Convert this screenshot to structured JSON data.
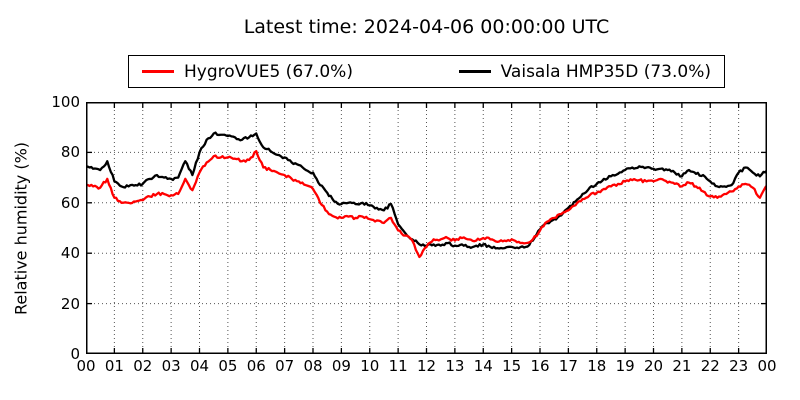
{
  "title": "Latest time: 2024-04-06 00:00:00 UTC",
  "legend": {
    "entries": [
      {
        "label": "HygroVUE5 (67.0%)",
        "color": "#ff0000"
      },
      {
        "label": "Vaisala HMP35D (73.0%)",
        "color": "#000000"
      }
    ]
  },
  "colors": {
    "background": "#ffffff",
    "axis": "#000000",
    "grid": "#555555",
    "series_red": "#ff0000",
    "series_black": "#000000"
  },
  "chart_data": {
    "type": "line",
    "title": "Latest time: 2024-04-06 00:00:00 UTC",
    "xlabel": "",
    "ylabel": "Relative humidity (%)",
    "xlim": [
      0,
      24
    ],
    "ylim": [
      0,
      100
    ],
    "grid": "dotted",
    "legend_position": "top-center-outside",
    "xtick_values": [
      0,
      1,
      2,
      3,
      4,
      5,
      6,
      7,
      8,
      9,
      10,
      11,
      12,
      13,
      14,
      15,
      16,
      17,
      18,
      19,
      20,
      21,
      22,
      23,
      24
    ],
    "xtick_labels": [
      "00",
      "01",
      "02",
      "03",
      "04",
      "05",
      "06",
      "07",
      "08",
      "09",
      "10",
      "11",
      "12",
      "13",
      "14",
      "15",
      "16",
      "17",
      "18",
      "19",
      "20",
      "21",
      "22",
      "23",
      "00"
    ],
    "ytick_values": [
      0,
      20,
      40,
      60,
      80,
      100
    ],
    "ytick_labels": [
      "0",
      "20",
      "40",
      "60",
      "80",
      "100"
    ],
    "x_unit": "hour of day (UTC), 2024-04-05 00:00 to 2024-04-06 00:00",
    "x": [
      0,
      0.25,
      0.5,
      0.75,
      1,
      1.25,
      1.5,
      1.75,
      2,
      2.25,
      2.5,
      2.75,
      3,
      3.25,
      3.5,
      3.75,
      4,
      4.25,
      4.5,
      4.75,
      5,
      5.25,
      5.5,
      5.75,
      6,
      6.25,
      6.5,
      6.75,
      7,
      7.25,
      7.5,
      7.75,
      8,
      8.25,
      8.5,
      8.75,
      9,
      9.25,
      9.5,
      9.75,
      10,
      10.25,
      10.5,
      10.75,
      11,
      11.25,
      11.5,
      11.75,
      12,
      12.25,
      12.5,
      12.75,
      13,
      13.25,
      13.5,
      13.75,
      14,
      14.25,
      14.5,
      14.75,
      15,
      15.25,
      15.5,
      15.75,
      16,
      16.25,
      16.5,
      16.75,
      17,
      17.25,
      17.5,
      17.75,
      18,
      18.25,
      18.5,
      18.75,
      19,
      19.25,
      19.5,
      19.75,
      20,
      20.25,
      20.5,
      20.75,
      21,
      21.25,
      21.5,
      21.75,
      22,
      22.25,
      22.5,
      22.75,
      23,
      23.25,
      23.5,
      23.75,
      24
    ],
    "series": [
      {
        "name": "HygroVUE5 (67.0%)",
        "sensor": "HygroVUE5",
        "latest_value": 67.0,
        "color": "#ff0000",
        "values": [
          67,
          66.5,
          66,
          69.5,
          62,
          60,
          60,
          60.5,
          61,
          62.5,
          63.5,
          63.5,
          63,
          63.5,
          69.5,
          65,
          72,
          76,
          78.5,
          78,
          78,
          77.5,
          76.5,
          77,
          80.5,
          74,
          73,
          72,
          71,
          69.5,
          68.5,
          67,
          65.5,
          60,
          56.5,
          54.5,
          54,
          54.5,
          54,
          54.5,
          53.5,
          53,
          52,
          54,
          49,
          47,
          45,
          38.5,
          42.5,
          45.5,
          45.5,
          46,
          45,
          46,
          45.5,
          45,
          46,
          45.5,
          44.5,
          45,
          45.5,
          44.5,
          44,
          45.5,
          49,
          52.5,
          54,
          55.5,
          57,
          59,
          61.5,
          63,
          64,
          65.5,
          66.5,
          67.5,
          68.5,
          69,
          69,
          68.5,
          68.5,
          69.5,
          68,
          67.5,
          66.5,
          68,
          66.5,
          64.5,
          62.5,
          62,
          63.5,
          64.5,
          66.5,
          67.5,
          66,
          62,
          67
        ]
      },
      {
        "name": "Vaisala HMP35D (73.0%)",
        "sensor": "Vaisala HMP35D",
        "latest_value": 73.0,
        "color": "#000000",
        "values": [
          74.5,
          73.5,
          73,
          76.5,
          68.5,
          66.5,
          66.5,
          67,
          67.5,
          69.5,
          71,
          70,
          69.5,
          70,
          76.5,
          71,
          80,
          85,
          87.5,
          87,
          86.5,
          86,
          85,
          86,
          87.5,
          82,
          80.5,
          79,
          78,
          76,
          75,
          73,
          72,
          67,
          64,
          60.5,
          59.5,
          60,
          59.5,
          60,
          59,
          58,
          57,
          59.5,
          51.5,
          48,
          45.5,
          43.5,
          43,
          43.5,
          43,
          44,
          43,
          43.5,
          42.5,
          43,
          43.5,
          42.5,
          42,
          42,
          42.5,
          42,
          42.5,
          45,
          49.5,
          52,
          53.5,
          55,
          58,
          60.5,
          63.5,
          66,
          67.5,
          69.5,
          70.5,
          71.5,
          73,
          74,
          74.5,
          74,
          73.5,
          73.5,
          73,
          72,
          70.5,
          73,
          71.5,
          71,
          68.5,
          66.5,
          66.5,
          67,
          72,
          74,
          72,
          70.5,
          73
        ]
      }
    ]
  }
}
